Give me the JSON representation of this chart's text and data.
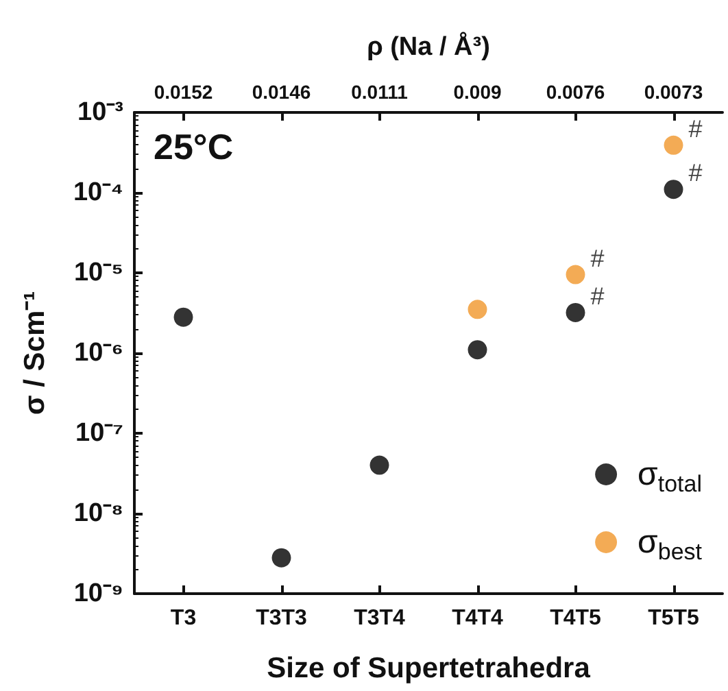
{
  "chart_data": {
    "type": "scatter",
    "xlabel": "Size of Supertetrahedra",
    "ylabel": "σ / Scm⁻¹",
    "x2label": "ρ (Na / Å³)",
    "categories": [
      "T3",
      "T3T3",
      "T3T4",
      "T4T4",
      "T4T5",
      "T5T5"
    ],
    "series": [
      {
        "name": "σ$_{total}$",
        "color": "#000000",
        "values": [
          2.8e-06,
          2.8e-09,
          4e-08,
          1.1e-06,
          3.2e-06,
          0.00011
        ]
      },
      {
        "name": "σ$_{best}$",
        "color": "#f0962a",
        "values": [
          null,
          null,
          null,
          3.5e-06,
          9.5e-06,
          0.00039
        ]
      }
    ],
    "log": "y",
    "ylim": [
      1e-09,
      0.001
    ],
    "yticks": [
      {
        "value": 1e-09,
        "label": "10⁻⁹"
      },
      {
        "value": 1e-08,
        "label": "10⁻⁸"
      },
      {
        "value": 1e-07,
        "label": "10⁻⁷"
      },
      {
        "value": 1e-06,
        "label": "10⁻⁶"
      },
      {
        "value": 1e-05,
        "label": "10⁻⁵"
      },
      {
        "value": 0.0001,
        "label": "10⁻⁴"
      },
      {
        "value": 0.001,
        "label": "10⁻³"
      }
    ],
    "annotations": [
      "25°C",
      {
        "text": "0.0152",
        "x": "T3"
      },
      {
        "text": "0.0146",
        "x": "T3T3"
      },
      {
        "text": "0.0111",
        "x": "T3T4"
      },
      {
        "text": "0.009",
        "x": "T4T4"
      },
      {
        "text": "0.0076",
        "x": "T4T5"
      },
      {
        "text": "0.0073",
        "x": "T5T5"
      },
      {
        "text": "#",
        "x": "T5T5",
        "y": 0.00039
      },
      {
        "text": "#",
        "x": "T5T5",
        "y": 0.00011
      },
      {
        "text": "#",
        "x": "T4T5",
        "y": 9.5e-06
      },
      {
        "text": "#",
        "x": "T4T5",
        "y": 3.2e-06
      }
    ],
    "marker": "circle",
    "grid": false,
    "legend": "bottom right"
  }
}
